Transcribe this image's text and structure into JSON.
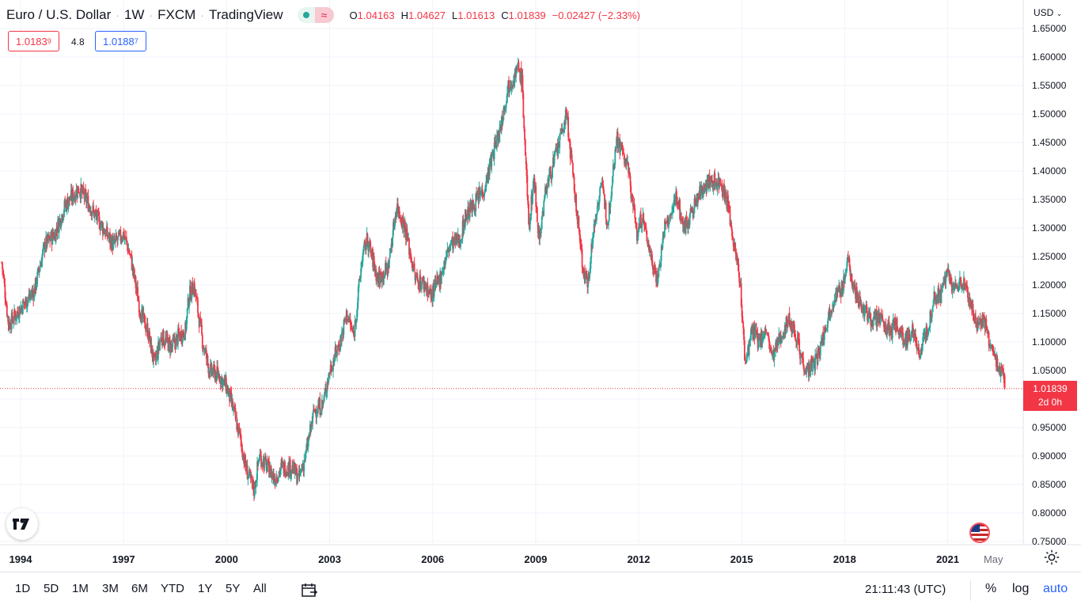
{
  "header": {
    "symbol": "Euro / U.S. Dollar",
    "interval": "1W",
    "exchange": "FXCM",
    "source": "TradingView",
    "status_icons": [
      "market-open-dot-icon",
      "delayed-data-icon"
    ],
    "ohlc": {
      "o_label": "O",
      "o_value": "1.04163",
      "h_label": "H",
      "h_value": "1.04627",
      "l_label": "L",
      "l_value": "1.01613",
      "c_label": "C",
      "c_value": "1.01839",
      "change": "−0.02427 (−2.33%)"
    }
  },
  "trade": {
    "sell_main": "1.0183",
    "sell_sup": "9",
    "spread": "4.8",
    "buy_main": "1.0188",
    "buy_sup": "7"
  },
  "currency_label": "USD",
  "last_price": {
    "value": "1.01839",
    "countdown": "2d 0h"
  },
  "toolbar": {
    "timeframes": [
      "1D",
      "5D",
      "1M",
      "3M",
      "6M",
      "YTD",
      "1Y",
      "5Y",
      "All"
    ],
    "clock": "21:11:43 (UTC)",
    "percent_label": "%",
    "log_label": "log",
    "auto_label": "auto"
  },
  "colors": {
    "up": "#26a69a",
    "down": "#f23645",
    "price_line": "#f23645",
    "grid": "#f0f3fa",
    "auto_button": "#2962ff"
  },
  "chart_data": {
    "type": "candlestick",
    "frequency": "weekly",
    "y_labels": [
      "1.65000",
      "1.60000",
      "1.55000",
      "1.50000",
      "1.45000",
      "1.40000",
      "1.35000",
      "1.30000",
      "1.25000",
      "1.20000",
      "1.15000",
      "1.10000",
      "1.05000",
      "1.00000",
      "0.95000",
      "0.90000",
      "0.85000",
      "0.80000",
      "0.75000"
    ],
    "ylim": [
      0.75,
      1.65
    ],
    "x_labels": [
      "1994",
      "1997",
      "2000",
      "2003",
      "2006",
      "2009",
      "2012",
      "2015",
      "2018",
      "2021",
      "May"
    ],
    "x_label_years": [
      1994,
      1997,
      2000,
      2003,
      2006,
      2009,
      2012,
      2015,
      2018,
      2021,
      2022.33
    ],
    "xlim": [
      1993.4,
      2023.2
    ],
    "last_close": 1.01839,
    "grid": true,
    "anchor_closes": [
      [
        1993.45,
        1.24
      ],
      [
        1993.65,
        1.13
      ],
      [
        1994.0,
        1.16
      ],
      [
        1994.4,
        1.19
      ],
      [
        1994.7,
        1.27
      ],
      [
        1995.0,
        1.29
      ],
      [
        1995.3,
        1.34
      ],
      [
        1995.7,
        1.37
      ],
      [
        1996.0,
        1.34
      ],
      [
        1996.4,
        1.3
      ],
      [
        1996.7,
        1.27
      ],
      [
        1997.0,
        1.29
      ],
      [
        1997.2,
        1.25
      ],
      [
        1997.5,
        1.15
      ],
      [
        1997.7,
        1.12
      ],
      [
        1997.9,
        1.06
      ],
      [
        1998.1,
        1.11
      ],
      [
        1998.4,
        1.09
      ],
      [
        1998.6,
        1.11
      ],
      [
        1998.8,
        1.12
      ],
      [
        1998.9,
        1.18
      ],
      [
        1999.05,
        1.2
      ],
      [
        1999.3,
        1.1
      ],
      [
        1999.5,
        1.05
      ],
      [
        1999.8,
        1.04
      ],
      [
        2000.0,
        1.02
      ],
      [
        2000.2,
        0.98
      ],
      [
        2000.4,
        0.93
      ],
      [
        2000.55,
        0.88
      ],
      [
        2000.8,
        0.84
      ],
      [
        2000.95,
        0.9
      ],
      [
        2001.2,
        0.88
      ],
      [
        2001.4,
        0.86
      ],
      [
        2001.6,
        0.88
      ],
      [
        2001.9,
        0.88
      ],
      [
        2002.1,
        0.86
      ],
      [
        2002.3,
        0.9
      ],
      [
        2002.55,
        0.98
      ],
      [
        2002.8,
        0.99
      ],
      [
        2003.0,
        1.05
      ],
      [
        2003.3,
        1.1
      ],
      [
        2003.5,
        1.15
      ],
      [
        2003.7,
        1.11
      ],
      [
        2003.95,
        1.25
      ],
      [
        2004.1,
        1.28
      ],
      [
        2004.4,
        1.21
      ],
      [
        2004.7,
        1.23
      ],
      [
        2004.95,
        1.34
      ],
      [
        2005.2,
        1.3
      ],
      [
        2005.5,
        1.21
      ],
      [
        2005.8,
        1.2
      ],
      [
        2005.95,
        1.18
      ],
      [
        2006.2,
        1.21
      ],
      [
        2006.5,
        1.27
      ],
      [
        2006.8,
        1.28
      ],
      [
        2006.95,
        1.32
      ],
      [
        2007.2,
        1.34
      ],
      [
        2007.5,
        1.37
      ],
      [
        2007.8,
        1.44
      ],
      [
        2007.95,
        1.47
      ],
      [
        2008.2,
        1.55
      ],
      [
        2008.5,
        1.58
      ],
      [
        2008.6,
        1.56
      ],
      [
        2008.8,
        1.3
      ],
      [
        2008.95,
        1.39
      ],
      [
        2009.1,
        1.28
      ],
      [
        2009.3,
        1.37
      ],
      [
        2009.6,
        1.43
      ],
      [
        2009.9,
        1.5
      ],
      [
        2010.1,
        1.38
      ],
      [
        2010.4,
        1.22
      ],
      [
        2010.5,
        1.2
      ],
      [
        2010.7,
        1.3
      ],
      [
        2010.9,
        1.38
      ],
      [
        2011.1,
        1.31
      ],
      [
        2011.35,
        1.46
      ],
      [
        2011.55,
        1.43
      ],
      [
        2011.7,
        1.4
      ],
      [
        2011.95,
        1.29
      ],
      [
        2012.1,
        1.32
      ],
      [
        2012.4,
        1.24
      ],
      [
        2012.55,
        1.21
      ],
      [
        2012.75,
        1.3
      ],
      [
        2012.95,
        1.32
      ],
      [
        2013.1,
        1.36
      ],
      [
        2013.3,
        1.3
      ],
      [
        2013.5,
        1.32
      ],
      [
        2013.7,
        1.35
      ],
      [
        2013.95,
        1.38
      ],
      [
        2014.2,
        1.38
      ],
      [
        2014.4,
        1.38
      ],
      [
        2014.6,
        1.34
      ],
      [
        2014.8,
        1.26
      ],
      [
        2014.95,
        1.21
      ],
      [
        2015.1,
        1.06
      ],
      [
        2015.3,
        1.12
      ],
      [
        2015.5,
        1.1
      ],
      [
        2015.7,
        1.12
      ],
      [
        2015.9,
        1.07
      ],
      [
        2016.2,
        1.12
      ],
      [
        2016.4,
        1.14
      ],
      [
        2016.6,
        1.11
      ],
      [
        2016.8,
        1.06
      ],
      [
        2016.97,
        1.05
      ],
      [
        2017.2,
        1.07
      ],
      [
        2017.5,
        1.14
      ],
      [
        2017.7,
        1.18
      ],
      [
        2017.9,
        1.19
      ],
      [
        2018.1,
        1.24
      ],
      [
        2018.3,
        1.19
      ],
      [
        2018.5,
        1.16
      ],
      [
        2018.8,
        1.14
      ],
      [
        2019.0,
        1.14
      ],
      [
        2019.3,
        1.12
      ],
      [
        2019.5,
        1.13
      ],
      [
        2019.75,
        1.1
      ],
      [
        2019.95,
        1.12
      ],
      [
        2020.2,
        1.08
      ],
      [
        2020.45,
        1.13
      ],
      [
        2020.6,
        1.18
      ],
      [
        2020.8,
        1.18
      ],
      [
        2020.95,
        1.22
      ],
      [
        2021.2,
        1.19
      ],
      [
        2021.4,
        1.21
      ],
      [
        2021.6,
        1.18
      ],
      [
        2021.85,
        1.13
      ],
      [
        2022.05,
        1.14
      ],
      [
        2022.2,
        1.1
      ],
      [
        2022.3,
        1.08
      ],
      [
        2022.45,
        1.06
      ],
      [
        2022.6,
        1.05
      ],
      [
        2022.68,
        1.02
      ]
    ]
  }
}
